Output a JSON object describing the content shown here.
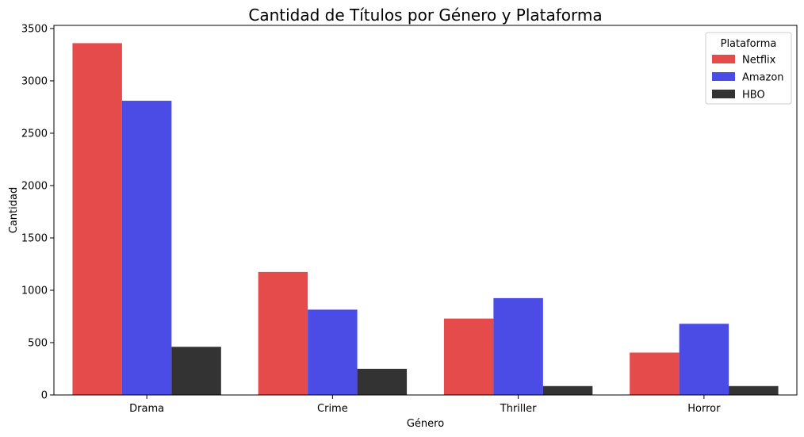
{
  "chart_data": {
    "type": "bar",
    "title": "Cantidad de Títulos por Género y Plataforma",
    "xlabel": "Género",
    "ylabel": "Cantidad",
    "categories": [
      "Drama",
      "Crime",
      "Thriller",
      "Horror"
    ],
    "ylim": [
      0,
      3530
    ],
    "yticks": [
      0,
      500,
      1000,
      1500,
      2000,
      2500,
      3000,
      3500
    ],
    "grid": false,
    "legend": {
      "title": "Plataforma",
      "placement": "top-right"
    },
    "series": [
      {
        "name": "Netflix",
        "color": "#e54b4b",
        "values": [
          3360,
          1175,
          730,
          405
        ]
      },
      {
        "name": "Amazon",
        "color": "#4b4be5",
        "values": [
          2810,
          815,
          925,
          680
        ]
      },
      {
        "name": "HBO",
        "color": "#333333",
        "values": [
          460,
          250,
          85,
          85
        ]
      }
    ]
  }
}
